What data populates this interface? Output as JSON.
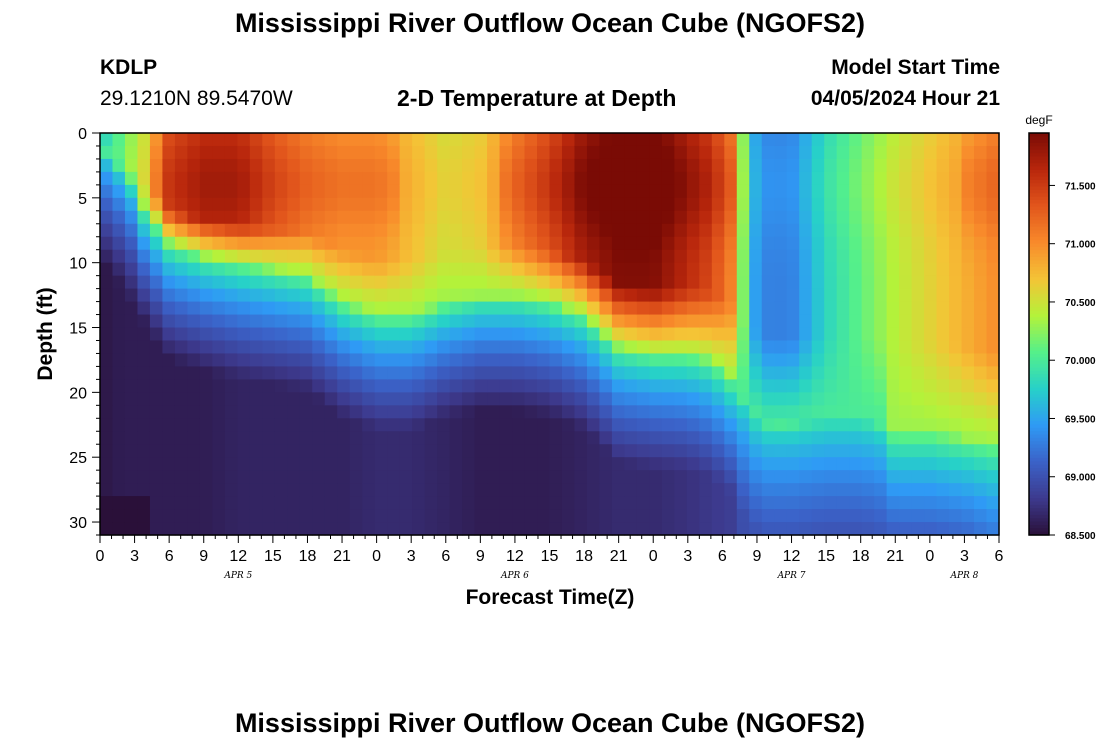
{
  "page": {
    "title": "Mississippi River Outflow Ocean Cube (NGOFS2)",
    "title_repeat": "Mississippi River Outflow Ocean Cube (NGOFS2)",
    "station_id": "KDLP",
    "station_coords": "29.1210N  89.5470W",
    "plot_subtitle": "2-D Temperature at Depth",
    "model_start_label": "Model Start Time",
    "model_start_value": "04/05/2024 Hour 21"
  },
  "chart_data": {
    "type": "heatmap",
    "title": "2-D Temperature at Depth",
    "xlabel": "Forecast Time(Z)",
    "ylabel": "Depth (ft)",
    "x_range_hours": [
      0,
      78
    ],
    "x_tick_hours": [
      0,
      3,
      6,
      9,
      12,
      15,
      18,
      21,
      24,
      27,
      30,
      33,
      36,
      39,
      42,
      45,
      48,
      51,
      54,
      57,
      60,
      63,
      66,
      69,
      72,
      75,
      78
    ],
    "x_tick_labels": [
      "0",
      "3",
      "6",
      "9",
      "12",
      "15",
      "18",
      "21",
      "0",
      "3",
      "6",
      "9",
      "12",
      "15",
      "18",
      "21",
      "0",
      "3",
      "6",
      "9",
      "12",
      "15",
      "18",
      "21",
      "0",
      "3",
      "6"
    ],
    "day_labels": [
      {
        "text": "APR 5",
        "hour": 12
      },
      {
        "text": "APR 6",
        "hour": 36
      },
      {
        "text": "APR 7",
        "hour": 60
      },
      {
        "text": "APR 8",
        "hour": 75
      }
    ],
    "y_range_ft": [
      0,
      31
    ],
    "y_ticks": [
      0,
      5,
      10,
      15,
      20,
      25,
      30
    ],
    "y_tick_labels": [
      "0",
      "5",
      "10",
      "15",
      "20",
      "25",
      "30"
    ],
    "colorbar": {
      "unit": "degF",
      "min": 68.5,
      "max": 71.95,
      "ticks": [
        68.5,
        69.0,
        69.5,
        70.0,
        70.5,
        71.0,
        71.5
      ],
      "tick_labels": [
        "68.500",
        "69.000",
        "69.500",
        "70.000",
        "70.500",
        "71.000",
        "71.500"
      ],
      "stops": [
        "#2a1039",
        "#3d3a8e",
        "#3b62c8",
        "#2f9af5",
        "#27d1c8",
        "#55f08a",
        "#b4f23a",
        "#f4c436",
        "#f88a2b",
        "#e2561c",
        "#b8260c",
        "#7a0b05"
      ]
    },
    "layers": {
      "description": "temperature (degF) field: surface warm layer depth (ft) and thermocline structure by forecast hour",
      "hours": [
        0,
        2,
        4,
        6,
        9,
        12,
        15,
        18,
        21,
        24,
        27,
        30,
        33,
        36,
        39,
        42,
        45,
        48,
        51,
        53,
        55,
        56,
        57,
        58,
        60,
        63,
        66,
        69,
        72,
        75,
        78
      ],
      "surface_temp": [
        69.7,
        70.1,
        70.5,
        71.3,
        71.5,
        71.5,
        71.2,
        71.0,
        70.9,
        70.9,
        70.7,
        70.5,
        70.6,
        71.0,
        71.3,
        71.7,
        71.9,
        71.9,
        71.6,
        71.4,
        71.0,
        70.0,
        69.4,
        69.3,
        69.3,
        69.8,
        70.1,
        70.4,
        70.6,
        70.8,
        71.0
      ],
      "mix_depth_ft": [
        1,
        3,
        6,
        8.5,
        9.5,
        10,
        10.5,
        11,
        13,
        14,
        14,
        13,
        12.5,
        12.5,
        13,
        14,
        16.5,
        17,
        17,
        17.5,
        19,
        21,
        22,
        22.5,
        22.5,
        22,
        22,
        23,
        23,
        23.5,
        24
      ],
      "bottom_temp": [
        68.55,
        68.6,
        68.6,
        68.6,
        68.6,
        68.65,
        68.65,
        68.65,
        68.65,
        68.7,
        68.7,
        68.65,
        68.6,
        68.6,
        68.6,
        68.65,
        68.7,
        68.7,
        68.75,
        68.8,
        68.85,
        69.0,
        69.0,
        69.0,
        69.0,
        69.0,
        69.0,
        69.0,
        69.0,
        69.0,
        69.1
      ]
    }
  }
}
